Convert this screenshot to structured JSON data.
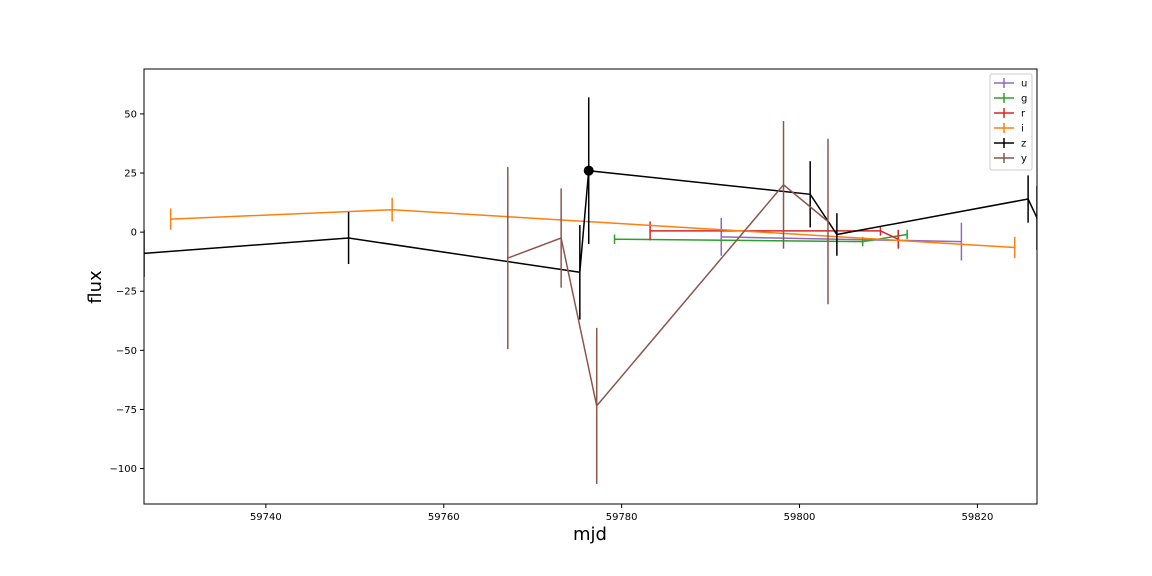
{
  "chart_data": {
    "type": "line",
    "xlabel": "mjd",
    "ylabel": "flux",
    "xlim": [
      59726.3,
      59826.7
    ],
    "ylim": [
      -115,
      69
    ],
    "xticks": [
      59740,
      59760,
      59780,
      59800,
      59820
    ],
    "yticks": [
      50,
      25,
      0,
      -25,
      -50,
      -75,
      -100
    ],
    "ytick_labels": [
      "50",
      "25",
      "0",
      "−25",
      "−50",
      "−75",
      "−100"
    ],
    "grid": false,
    "legend_placement": "top-right",
    "series": [
      {
        "name": "u",
        "color": "#9467bd",
        "points": [
          {
            "x": 59791.2,
            "y": -2,
            "err": 8,
            "xerr": 0
          },
          {
            "x": 59818.2,
            "y": -4,
            "err": 8,
            "xerr": 0
          }
        ]
      },
      {
        "name": "g",
        "color": "#2ca02c",
        "points": [
          {
            "x": 59779.2,
            "y": -3,
            "err": 2,
            "xerr": 0
          },
          {
            "x": 59807.1,
            "y": -4,
            "err": 2,
            "xerr": 0
          },
          {
            "x": 59812.1,
            "y": -1,
            "err": 2,
            "xerr": 0
          }
        ]
      },
      {
        "name": "r",
        "color": "#d62728",
        "points": [
          {
            "x": 59783.2,
            "y": 0.5,
            "err": 4,
            "xerr": 0
          },
          {
            "x": 59809.1,
            "y": 0.5,
            "err": 2,
            "xerr": 0
          },
          {
            "x": 59811.1,
            "y": -3,
            "err": 4,
            "xerr": 0
          }
        ]
      },
      {
        "name": "i",
        "color": "#ff7f0e",
        "points": [
          {
            "x": 59729.3,
            "y": 5.5,
            "err": 4.5,
            "xerr": 0
          },
          {
            "x": 59754.2,
            "y": 9.5,
            "err": 5,
            "xerr": 0
          },
          {
            "x": 59824.2,
            "y": -6.5,
            "err": 4.5,
            "xerr": 0
          }
        ]
      },
      {
        "name": "z",
        "color": "#000000",
        "points": [
          {
            "x": 59726.3,
            "y": -9,
            "err": 10,
            "xerr": 0
          },
          {
            "x": 59749.3,
            "y": -2.5,
            "err": 11,
            "xerr": 0
          },
          {
            "x": 59775.3,
            "y": -17,
            "err": 20,
            "xerr": 0
          },
          {
            "x": 59776.3,
            "y": 26,
            "err": 31,
            "xerr": 0
          },
          {
            "x": 59801.2,
            "y": 16,
            "err": 14,
            "xerr": 0
          },
          {
            "x": 59804.2,
            "y": -1,
            "err": 9,
            "xerr": 0
          },
          {
            "x": 59825.7,
            "y": 14,
            "err": 10,
            "xerr": 0
          },
          {
            "x": 59826.7,
            "y": 6,
            "err": 13.5,
            "xerr": 0
          }
        ]
      },
      {
        "name": "y",
        "color": "#8c564b",
        "points": [
          {
            "x": 59767.2,
            "y": -11,
            "err": 38.5,
            "xerr": 0
          },
          {
            "x": 59773.2,
            "y": -2.5,
            "err": 21,
            "xerr": 0
          },
          {
            "x": 59777.2,
            "y": -73.5,
            "err": 33,
            "xerr": 0
          },
          {
            "x": 59798.2,
            "y": 20,
            "err": 27,
            "xerr": 0
          },
          {
            "x": 59803.2,
            "y": 4.5,
            "err": 35,
            "xerr": 0
          }
        ]
      }
    ],
    "highlight_point": {
      "series": "z",
      "x": 59776.3,
      "y": 26
    }
  }
}
